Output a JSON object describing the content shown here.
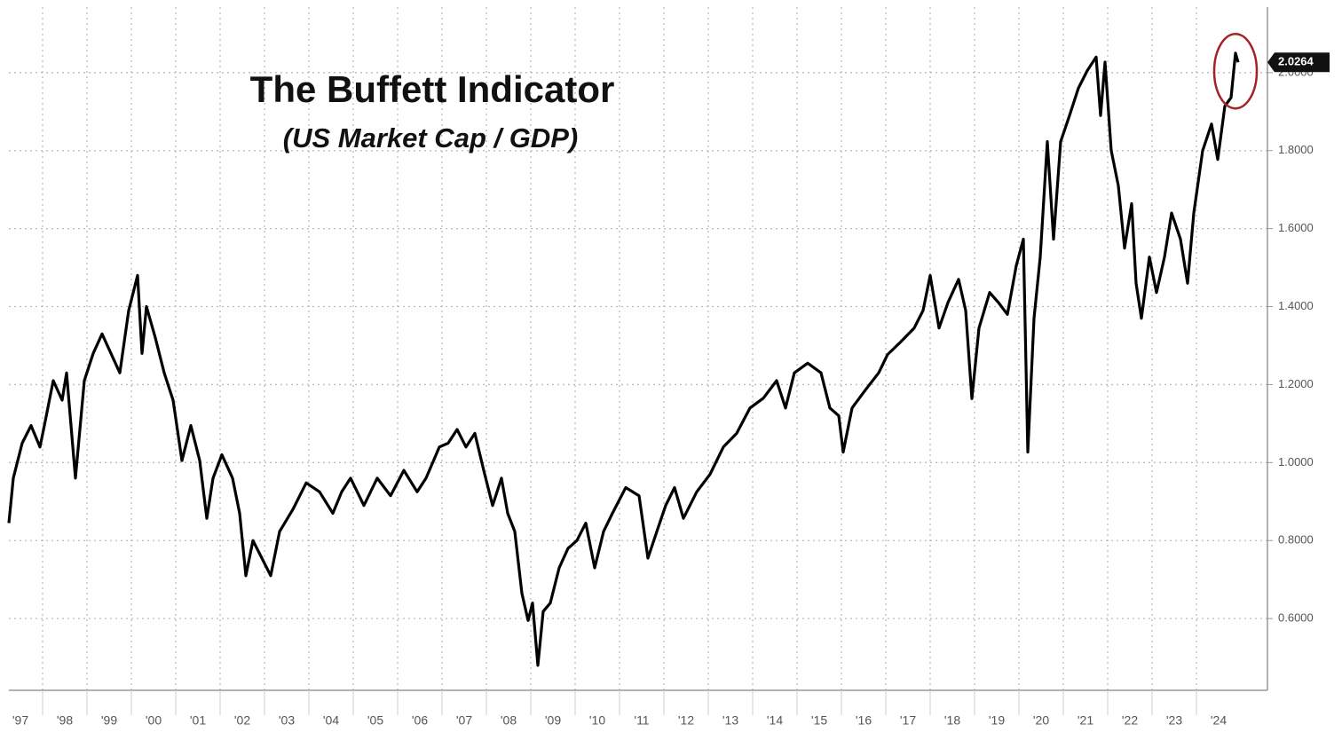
{
  "chart_data": {
    "type": "line",
    "title": "The Buffett Indicator",
    "subtitle": "(US Market Cap / GDP)",
    "color": "#000000",
    "grid": true,
    "x": [
      1997.24,
      1997.34,
      1997.54,
      1997.74,
      1997.94,
      1998.04,
      1998.24,
      1998.44,
      1998.54,
      1998.74,
      1998.94,
      1999.14,
      1999.34,
      1999.54,
      1999.74,
      1999.94,
      2000.14,
      2000.24,
      2000.34,
      2000.54,
      2000.74,
      2000.94,
      2001.14,
      2001.34,
      2001.54,
      2001.7,
      2001.84,
      2002.04,
      2002.28,
      2002.44,
      2002.58,
      2002.74,
      2002.94,
      2003.14,
      2003.34,
      2003.64,
      2003.94,
      2004.24,
      2004.54,
      2004.74,
      2004.94,
      2005.24,
      2005.54,
      2005.84,
      2006.14,
      2006.44,
      2006.64,
      2006.94,
      2007.14,
      2007.34,
      2007.54,
      2007.74,
      2007.94,
      2008.14,
      2008.34,
      2008.48,
      2008.64,
      2008.8,
      2008.94,
      2009.04,
      2009.16,
      2009.28,
      2009.44,
      2009.64,
      2009.84,
      2010.04,
      2010.24,
      2010.44,
      2010.64,
      2010.84,
      2011.14,
      2011.44,
      2011.64,
      2011.84,
      2012.04,
      2012.24,
      2012.44,
      2012.74,
      2013.04,
      2013.34,
      2013.64,
      2013.94,
      2014.24,
      2014.54,
      2014.74,
      2014.94,
      2015.24,
      2015.54,
      2015.74,
      2015.94,
      2016.04,
      2016.24,
      2016.54,
      2016.84,
      2017.04,
      2017.34,
      2017.64,
      2017.84,
      2018.0,
      2018.2,
      2018.4,
      2018.64,
      2018.8,
      2018.94,
      2019.1,
      2019.34,
      2019.54,
      2019.74,
      2019.94,
      2020.1,
      2020.2,
      2020.34,
      2020.48,
      2020.64,
      2020.78,
      2020.94,
      2021.14,
      2021.34,
      2021.54,
      2021.74,
      2021.84,
      2021.94,
      2022.08,
      2022.24,
      2022.38,
      2022.54,
      2022.64,
      2022.76,
      2022.94,
      2023.1,
      2023.28,
      2023.44,
      2023.64,
      2023.8,
      2023.94,
      2024.14,
      2024.34,
      2024.48,
      2024.64,
      2024.78,
      2024.88,
      2024.94
    ],
    "values": [
      0.845,
      0.96,
      1.05,
      1.095,
      1.04,
      1.095,
      1.21,
      1.16,
      1.23,
      0.96,
      1.21,
      1.28,
      1.33,
      1.28,
      1.23,
      1.39,
      1.48,
      1.28,
      1.4,
      1.32,
      1.23,
      1.16,
      1.005,
      1.095,
      1.005,
      0.857,
      0.96,
      1.02,
      0.96,
      0.87,
      0.71,
      0.8,
      0.755,
      0.71,
      0.823,
      0.88,
      0.948,
      0.925,
      0.87,
      0.925,
      0.96,
      0.89,
      0.96,
      0.915,
      0.98,
      0.925,
      0.96,
      1.04,
      1.05,
      1.085,
      1.04,
      1.075,
      0.98,
      0.89,
      0.96,
      0.87,
      0.823,
      0.665,
      0.595,
      0.64,
      0.48,
      0.618,
      0.64,
      0.73,
      0.78,
      0.8,
      0.845,
      0.73,
      0.823,
      0.87,
      0.936,
      0.915,
      0.755,
      0.823,
      0.89,
      0.936,
      0.857,
      0.925,
      0.97,
      1.04,
      1.075,
      1.14,
      1.165,
      1.21,
      1.14,
      1.23,
      1.255,
      1.23,
      1.14,
      1.12,
      1.027,
      1.14,
      1.186,
      1.23,
      1.277,
      1.31,
      1.345,
      1.39,
      1.48,
      1.345,
      1.41,
      1.47,
      1.39,
      1.164,
      1.345,
      1.436,
      1.41,
      1.38,
      1.505,
      1.573,
      1.027,
      1.37,
      1.527,
      1.823,
      1.573,
      1.823,
      1.89,
      1.96,
      2.005,
      2.04,
      1.89,
      2.027,
      1.8,
      1.71,
      1.55,
      1.664,
      1.46,
      1.37,
      1.527,
      1.436,
      1.527,
      1.64,
      1.573,
      1.46,
      1.64,
      1.8,
      1.868,
      1.777,
      1.914,
      1.936,
      2.05,
      2.0264
    ],
    "xlim": [
      1997.24,
      2025.6
    ],
    "ylim": [
      0.416,
      2.168
    ],
    "xticks": [
      {
        "value": 1997,
        "label": "'97"
      },
      {
        "value": 1998,
        "label": "'98"
      },
      {
        "value": 1999,
        "label": "'99"
      },
      {
        "value": 2000,
        "label": "'00"
      },
      {
        "value": 2001,
        "label": "'01"
      },
      {
        "value": 2002,
        "label": "'02"
      },
      {
        "value": 2003,
        "label": "'03"
      },
      {
        "value": 2004,
        "label": "'04"
      },
      {
        "value": 2005,
        "label": "'05"
      },
      {
        "value": 2006,
        "label": "'06"
      },
      {
        "value": 2007,
        "label": "'07"
      },
      {
        "value": 2008,
        "label": "'08"
      },
      {
        "value": 2009,
        "label": "'09"
      },
      {
        "value": 2010,
        "label": "'10"
      },
      {
        "value": 2011,
        "label": "'11"
      },
      {
        "value": 2012,
        "label": "'12"
      },
      {
        "value": 2013,
        "label": "'13"
      },
      {
        "value": 2014,
        "label": "'14"
      },
      {
        "value": 2015,
        "label": "'15"
      },
      {
        "value": 2016,
        "label": "'16"
      },
      {
        "value": 2017,
        "label": "'17"
      },
      {
        "value": 2018,
        "label": "'18"
      },
      {
        "value": 2019,
        "label": "'19"
      },
      {
        "value": 2020,
        "label": "'20"
      },
      {
        "value": 2021,
        "label": "'21"
      },
      {
        "value": 2022,
        "label": "'22"
      },
      {
        "value": 2023,
        "label": "'23"
      },
      {
        "value": 2024,
        "label": "'24"
      }
    ],
    "yticks": [
      {
        "value": 0.6,
        "label": "0.6000"
      },
      {
        "value": 0.8,
        "label": "0.8000"
      },
      {
        "value": 1.0,
        "label": "1.0000"
      },
      {
        "value": 1.2,
        "label": "1.2000"
      },
      {
        "value": 1.4,
        "label": "1.4000"
      },
      {
        "value": 1.6,
        "label": "1.6000"
      },
      {
        "value": 1.8,
        "label": "1.8000"
      },
      {
        "value": 2.0,
        "label": "2.0000"
      }
    ]
  }
}
